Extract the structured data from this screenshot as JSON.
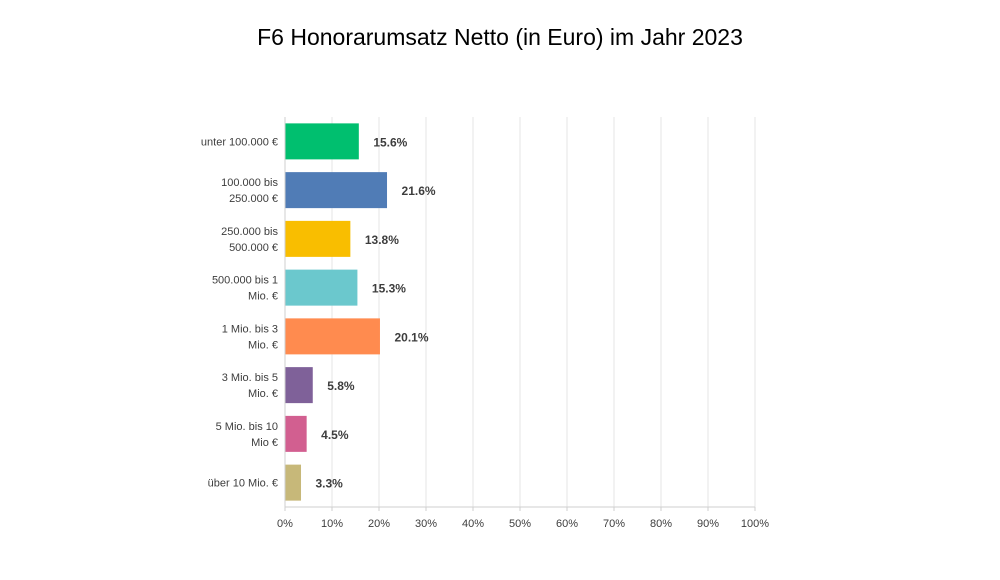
{
  "chart_data": {
    "type": "bar",
    "orientation": "horizontal",
    "title": "F6 Honorarumsatz Netto (in Euro) im Jahr 2023",
    "categories": [
      [
        "unter 100.000 €"
      ],
      [
        "100.000 bis",
        "250.000 €"
      ],
      [
        "250.000 bis",
        "500.000 €"
      ],
      [
        "500.000 bis 1",
        "Mio. €"
      ],
      [
        "1 Mio. bis 3",
        "Mio. €"
      ],
      [
        "3 Mio. bis 5",
        "Mio. €"
      ],
      [
        "5 Mio. bis 10",
        "Mio €"
      ],
      [
        "über 10 Mio. €"
      ]
    ],
    "values": [
      15.6,
      21.6,
      13.8,
      15.3,
      20.1,
      5.8,
      4.5,
      3.3
    ],
    "value_labels": [
      "15.6%",
      "21.6%",
      "13.8%",
      "15.3%",
      "20.1%",
      "5.8%",
      "4.5%",
      "3.3%"
    ],
    "colors": [
      "#00bf6f",
      "#507cb6",
      "#f9be00",
      "#6bc8cd",
      "#ff8b4f",
      "#7f6199",
      "#d25f90",
      "#c7b879"
    ],
    "xlim": [
      0,
      100
    ],
    "xticks": [
      "0%",
      "10%",
      "20%",
      "30%",
      "40%",
      "50%",
      "60%",
      "70%",
      "80%",
      "90%",
      "100%"
    ],
    "grid": true,
    "xlabel": "",
    "ylabel": ""
  }
}
